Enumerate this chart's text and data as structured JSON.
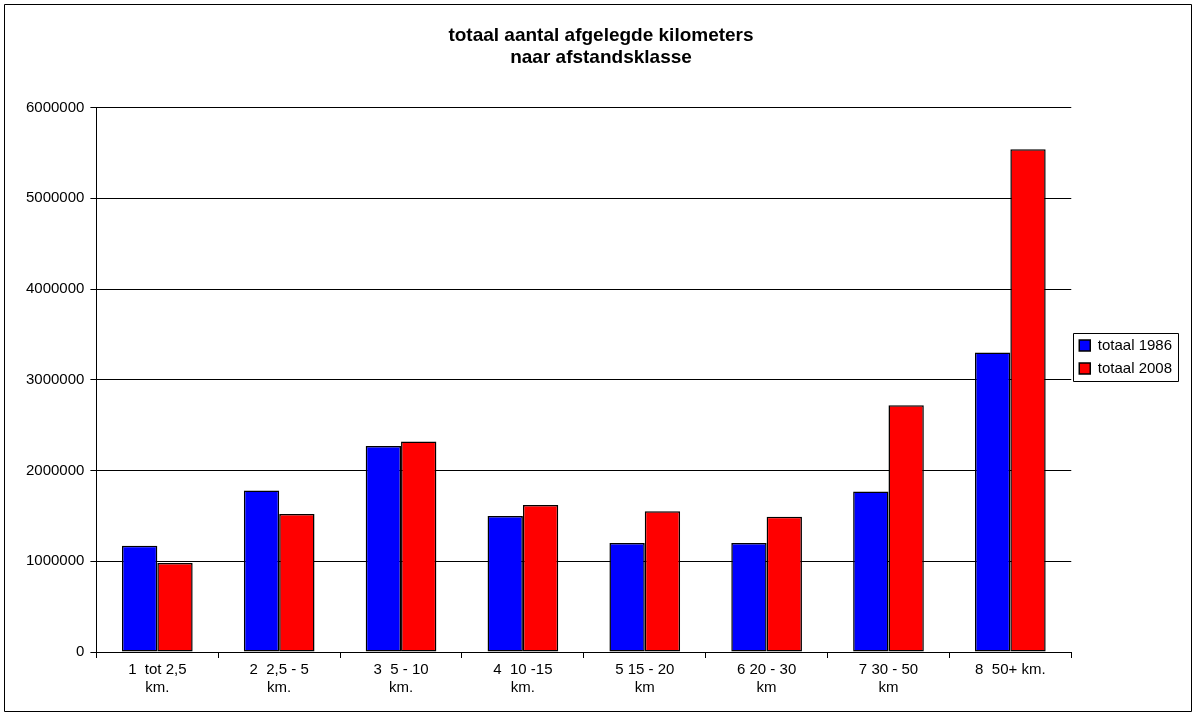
{
  "chart_data": {
    "type": "bar",
    "title": "totaal aantal afgelegde kilometers\nnaar afstandsklasse",
    "categories": [
      "1  tot 2,5\nkm.",
      "2  2,5 - 5\nkm.",
      "3  5 - 10\nkm.",
      "4  10 -15\nkm.",
      "5 15 - 20\nkm",
      "6 20 - 30\nkm",
      "7 30 - 50\nkm",
      "8  50+ km."
    ],
    "series": [
      {
        "name": "totaal 1986",
        "color": "#0000ff",
        "values": [
          1170000,
          1780000,
          2270000,
          1500000,
          1200000,
          1200000,
          1770000,
          3300000
        ]
      },
      {
        "name": "totaal 2008",
        "color": "#ff0000",
        "values": [
          980000,
          1520000,
          2320000,
          1620000,
          1550000,
          1490000,
          2720000,
          5540000
        ]
      }
    ],
    "ylim": [
      0,
      6000000
    ],
    "yticks": [
      0,
      1000000,
      2000000,
      3000000,
      4000000,
      5000000,
      6000000
    ],
    "grid": "y",
    "legend": "right"
  }
}
